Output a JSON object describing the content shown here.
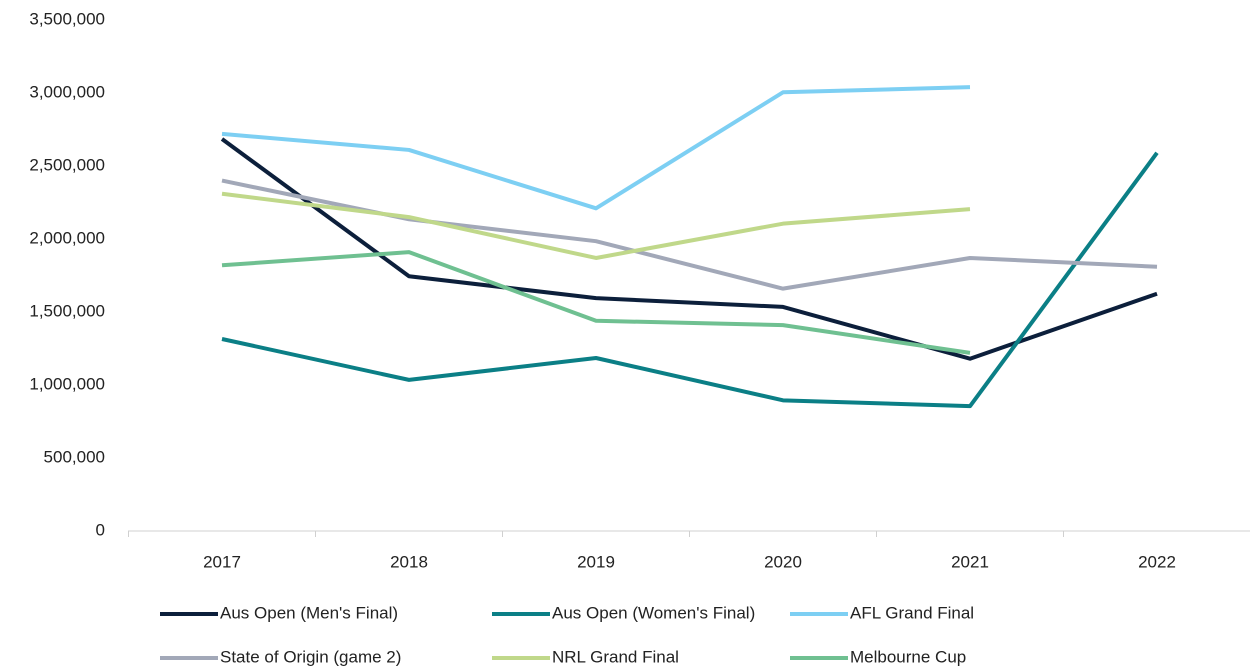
{
  "chart_data": {
    "type": "line",
    "categories": [
      "2017",
      "2018",
      "2019",
      "2020",
      "2021",
      "2022"
    ],
    "series": [
      {
        "name": "Aus Open (Men's Final)",
        "color": "#0c1f3b",
        "values": [
          2685000,
          1745000,
          1595000,
          1535000,
          1180000,
          1625000
        ]
      },
      {
        "name": "Aus Open (Women's Final)",
        "color": "#0b7f86",
        "values": [
          1315000,
          1035000,
          1185000,
          895000,
          855000,
          2590000
        ]
      },
      {
        "name": "AFL Grand Final",
        "color": "#7dcff3",
        "values": [
          2720000,
          2610000,
          2210000,
          3005000,
          3040000,
          null
        ]
      },
      {
        "name": "State of Origin (game 2)",
        "color": "#a2a8b8",
        "values": [
          2400000,
          2135000,
          1985000,
          1660000,
          1870000,
          1810000
        ]
      },
      {
        "name": "NRL Grand Final",
        "color": "#c0d88a",
        "values": [
          2310000,
          2150000,
          1870000,
          2105000,
          2205000,
          null
        ]
      },
      {
        "name": "Melbourne Cup",
        "color": "#6fc091",
        "values": [
          1820000,
          1910000,
          1440000,
          1410000,
          1220000,
          null
        ]
      }
    ],
    "ylim": [
      0,
      3500000
    ],
    "yticks": [
      0,
      {
        "value": 500000,
        "label": "500,000"
      },
      {
        "value": 1000000,
        "label": "1,000,000"
      },
      {
        "value": 1500000,
        "label": "1,500,000"
      },
      {
        "value": 2000000,
        "label": "2,000,000"
      },
      {
        "value": 2500000,
        "label": "2,500,000"
      },
      {
        "value": 3000000,
        "label": "3,000,000"
      },
      {
        "value": 3500000,
        "label": "3,500,000"
      }
    ],
    "grid": false,
    "legend": "bottom"
  }
}
